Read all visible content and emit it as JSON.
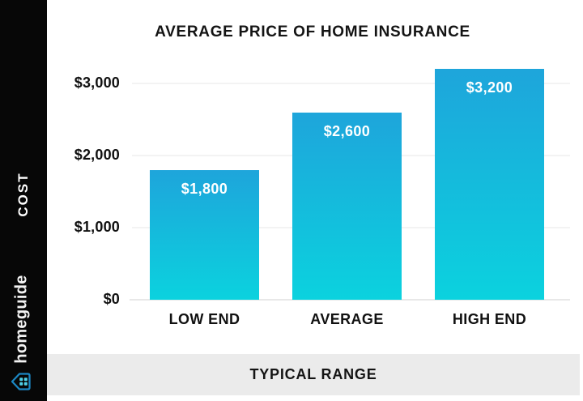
{
  "sidebar": {
    "cost_label": "COST",
    "brand_text": "homeguide",
    "brand_icon": "house-icon"
  },
  "chart_data": {
    "type": "bar",
    "title": "AVERAGE PRICE OF HOME INSURANCE",
    "categories": [
      "LOW END",
      "AVERAGE",
      "HIGH END"
    ],
    "values": [
      1800,
      2600,
      3200
    ],
    "value_labels": [
      "$1,800",
      "$2,600",
      "$3,200"
    ],
    "ytick_labels": [
      "$3,000",
      "$2,000",
      "$1,000",
      "$0"
    ],
    "ytick_values": [
      3000,
      2000,
      1000,
      0
    ],
    "ylim": [
      0,
      3370
    ],
    "ylabel": "COST",
    "xlabel": "TYPICAL RANGE",
    "grid": true,
    "legend": false,
    "bar_color_top": "#1ea5db",
    "bar_color_bottom": "#0bd2de"
  },
  "footer": {
    "label": "TYPICAL RANGE"
  },
  "colors": {
    "sidebar_bg": "#070707",
    "footer_bg": "#ebebeb",
    "title_text": "#141414",
    "brand_outline_blue": "#1b86c2",
    "brand_window_blue": "#4fd0e8"
  }
}
